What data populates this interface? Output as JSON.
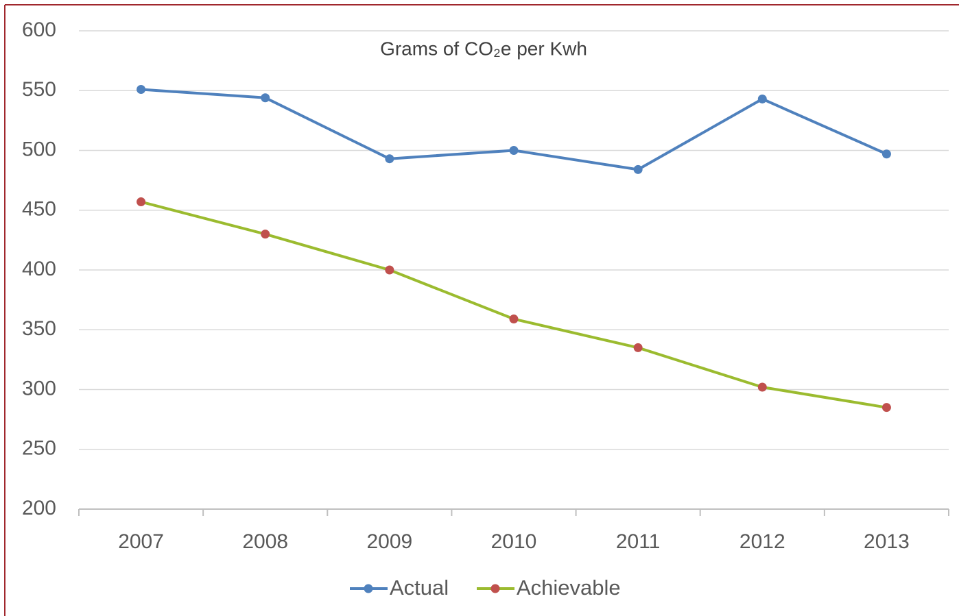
{
  "chart_data": {
    "type": "line",
    "title": "Grams of CO₂e per Kwh",
    "categories": [
      "2007",
      "2008",
      "2009",
      "2010",
      "2011",
      "2012",
      "2013"
    ],
    "series": [
      {
        "name": "Actual",
        "color": "#4f81bd",
        "marker_color": "#4f81bd",
        "values": [
          551,
          544,
          493,
          500,
          484,
          543,
          497
        ]
      },
      {
        "name": "Achievable",
        "color": "#9bbb2f",
        "marker_color": "#c0504d",
        "values": [
          457,
          430,
          400,
          359,
          335,
          302,
          285
        ]
      }
    ],
    "ylim": [
      200,
      600
    ],
    "yticks": [
      200,
      250,
      300,
      350,
      400,
      450,
      500,
      550,
      600
    ],
    "grid": true,
    "legend": "bottom"
  }
}
